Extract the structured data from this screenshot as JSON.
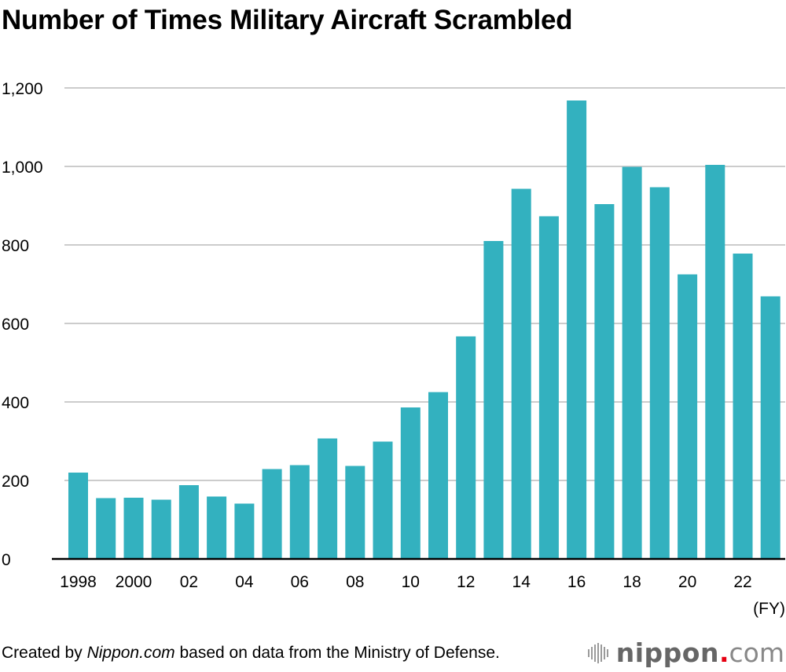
{
  "chart_data": {
    "type": "bar",
    "title": "Number of Times Military Aircraft Scrambled",
    "xlabel": "(FY)",
    "ylabel": "",
    "ylim": [
      0,
      1200
    ],
    "yticks": [
      0,
      200,
      400,
      600,
      800,
      1000,
      1200
    ],
    "ytick_labels": [
      "0",
      "200",
      "400",
      "600",
      "800",
      "1,000",
      "1,200"
    ],
    "grid": true,
    "bar_color": "#33b1bf",
    "categories": [
      "1998",
      "1999",
      "2000",
      "2001",
      "2002",
      "2003",
      "2004",
      "2005",
      "2006",
      "2007",
      "2008",
      "2009",
      "2010",
      "2011",
      "2012",
      "2013",
      "2014",
      "2015",
      "2016",
      "2017",
      "2018",
      "2019",
      "2020",
      "2021",
      "2022",
      "2023"
    ],
    "xtick_labels": [
      "1998",
      "",
      "2000",
      "",
      "02",
      "",
      "04",
      "",
      "06",
      "",
      "08",
      "",
      "10",
      "",
      "12",
      "",
      "14",
      "",
      "16",
      "",
      "18",
      "",
      "20",
      "",
      "22",
      ""
    ],
    "values": [
      220,
      155,
      156,
      151,
      188,
      159,
      141,
      229,
      239,
      307,
      237,
      299,
      386,
      425,
      567,
      810,
      943,
      873,
      1168,
      904,
      999,
      947,
      725,
      1004,
      778,
      669
    ]
  },
  "footer": {
    "prefix": "Created by ",
    "source_italic": "Nippon.com",
    "suffix": " based on data from the Ministry of Defense."
  },
  "logo": {
    "brand": "nippon",
    "dot": ".",
    "tld": "com"
  }
}
